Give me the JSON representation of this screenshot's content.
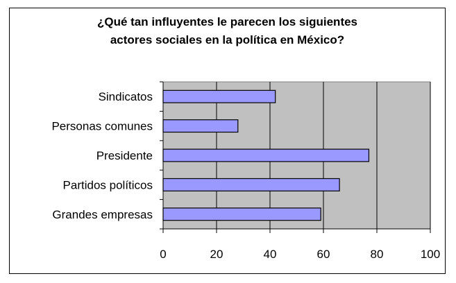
{
  "chart_data": {
    "type": "bar",
    "orientation": "horizontal",
    "title": "¿Qué tan influyentes le parecen los siguientes\nactores sociales en la política en México?",
    "categories": [
      "Sindicatos",
      "Personas comunes",
      "Presidente",
      "Partidos políticos",
      "Grandes empresas"
    ],
    "values": [
      42,
      28,
      77,
      66,
      59
    ],
    "xlim": [
      0,
      100
    ],
    "xticks": [
      "0",
      "20",
      "40",
      "60",
      "80",
      "100"
    ],
    "grid": true,
    "legend": "none",
    "colors": {
      "bar_fill": "#9999ff",
      "bar_stroke": "#000000",
      "plot_background": "#c0c0c0",
      "grid": "#000000"
    }
  }
}
